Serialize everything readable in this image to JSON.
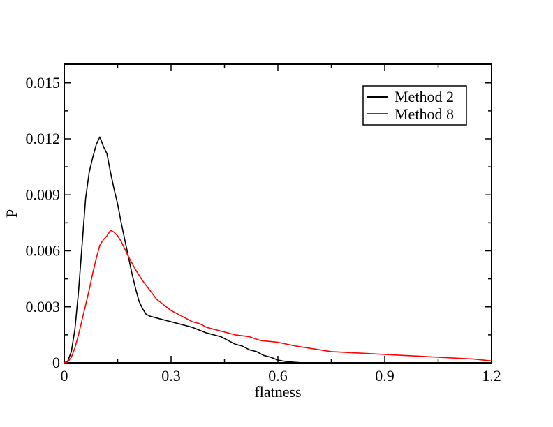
{
  "chart_data": {
    "type": "line",
    "title": "",
    "xlabel": "flatness",
    "ylabel": "P",
    "xlim": [
      0,
      1.2
    ],
    "ylim": [
      0,
      0.016
    ],
    "x_ticks": [
      0,
      0.3,
      0.6,
      0.9,
      1.2
    ],
    "x_tick_labels": [
      "0",
      "0.3",
      "0.6",
      "0.9",
      "1.2"
    ],
    "y_ticks": [
      0,
      0.003,
      0.006,
      0.009,
      0.012,
      0.015
    ],
    "y_tick_labels": [
      "0",
      "0.003",
      "0.006",
      "0.009",
      "0.012",
      "0.015"
    ],
    "grid": false,
    "legend_position": "top-right",
    "series": [
      {
        "name": "Method 2",
        "color": "#000000",
        "x": [
          0.0,
          0.01,
          0.02,
          0.03,
          0.04,
          0.05,
          0.06,
          0.07,
          0.08,
          0.09,
          0.1,
          0.11,
          0.12,
          0.13,
          0.14,
          0.15,
          0.16,
          0.17,
          0.18,
          0.19,
          0.2,
          0.21,
          0.22,
          0.23,
          0.24,
          0.26,
          0.28,
          0.3,
          0.32,
          0.34,
          0.36,
          0.38,
          0.4,
          0.42,
          0.44,
          0.46,
          0.48,
          0.5,
          0.52,
          0.54,
          0.56,
          0.58,
          0.6,
          0.62,
          0.64,
          0.66,
          0.7,
          0.75,
          0.8,
          1.2
        ],
        "y": [
          0.0,
          0.0001,
          0.0006,
          0.0018,
          0.0038,
          0.0063,
          0.0088,
          0.0102,
          0.011,
          0.0117,
          0.0121,
          0.0116,
          0.0112,
          0.0102,
          0.0093,
          0.0085,
          0.0075,
          0.0066,
          0.0057,
          0.0048,
          0.004,
          0.0033,
          0.0029,
          0.0026,
          0.0025,
          0.0024,
          0.0023,
          0.0022,
          0.0021,
          0.002,
          0.0019,
          0.00175,
          0.0016,
          0.0015,
          0.0014,
          0.0012,
          0.001,
          0.0009,
          0.0007,
          0.0006,
          0.0004,
          0.0003,
          0.00015,
          8e-05,
          4e-05,
          1e-05,
          0.0,
          0.0,
          0.0,
          0.0
        ]
      },
      {
        "name": "Method 8",
        "color": "#ff0000",
        "x": [
          0.0,
          0.01,
          0.02,
          0.03,
          0.04,
          0.05,
          0.06,
          0.07,
          0.08,
          0.09,
          0.1,
          0.11,
          0.12,
          0.13,
          0.14,
          0.15,
          0.16,
          0.17,
          0.18,
          0.2,
          0.22,
          0.24,
          0.26,
          0.28,
          0.3,
          0.32,
          0.34,
          0.36,
          0.38,
          0.4,
          0.42,
          0.44,
          0.46,
          0.48,
          0.5,
          0.52,
          0.55,
          0.6,
          0.65,
          0.7,
          0.75,
          0.8,
          0.85,
          0.9,
          0.95,
          1.0,
          1.05,
          1.1,
          1.15,
          1.2
        ],
        "y": [
          0.0,
          5e-05,
          0.0003,
          0.0008,
          0.0015,
          0.0023,
          0.0031,
          0.0039,
          0.0048,
          0.0056,
          0.0063,
          0.0066,
          0.0068,
          0.0071,
          0.007,
          0.0068,
          0.0065,
          0.0061,
          0.0057,
          0.005,
          0.0044,
          0.0039,
          0.0034,
          0.0031,
          0.0028,
          0.0026,
          0.0024,
          0.0022,
          0.0021,
          0.0019,
          0.0018,
          0.0017,
          0.0016,
          0.0015,
          0.00145,
          0.0014,
          0.0012,
          0.0011,
          0.0009,
          0.00075,
          0.0006,
          0.00055,
          0.0005,
          0.00045,
          0.0004,
          0.00035,
          0.0003,
          0.00025,
          0.0002,
          0.0001
        ]
      }
    ]
  }
}
